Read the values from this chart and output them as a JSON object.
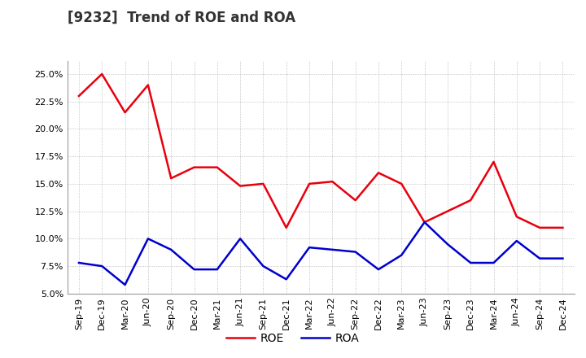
{
  "title": "[9232]  Trend of ROE and ROA",
  "labels": [
    "Sep-19",
    "Dec-19",
    "Mar-20",
    "Jun-20",
    "Sep-20",
    "Dec-20",
    "Mar-21",
    "Jun-21",
    "Sep-21",
    "Dec-21",
    "Mar-22",
    "Jun-22",
    "Sep-22",
    "Dec-22",
    "Mar-23",
    "Jun-23",
    "Sep-23",
    "Dec-23",
    "Mar-24",
    "Jun-24",
    "Sep-24",
    "Dec-24"
  ],
  "ROE": [
    0.23,
    0.25,
    0.215,
    0.24,
    0.155,
    0.165,
    0.165,
    0.148,
    0.15,
    0.11,
    0.15,
    0.152,
    0.135,
    0.16,
    0.15,
    0.115,
    0.125,
    0.135,
    0.17,
    0.12,
    0.11,
    0.11
  ],
  "ROA": [
    0.078,
    0.075,
    0.058,
    0.1,
    0.09,
    0.072,
    0.072,
    0.1,
    0.075,
    0.063,
    0.092,
    0.09,
    0.088,
    0.072,
    0.085,
    0.115,
    0.095,
    0.078,
    0.078,
    0.098,
    0.082,
    0.082
  ],
  "roe_color": "#e8000d",
  "roa_color": "#0000cc",
  "background_color": "#ffffff",
  "grid_color": "#aaaaaa",
  "ylim": [
    0.05,
    0.262
  ],
  "yticks": [
    0.05,
    0.075,
    0.1,
    0.125,
    0.15,
    0.175,
    0.2,
    0.225,
    0.25
  ],
  "title_fontsize": 12,
  "legend_fontsize": 10,
  "tick_fontsize": 8,
  "line_width": 1.8
}
